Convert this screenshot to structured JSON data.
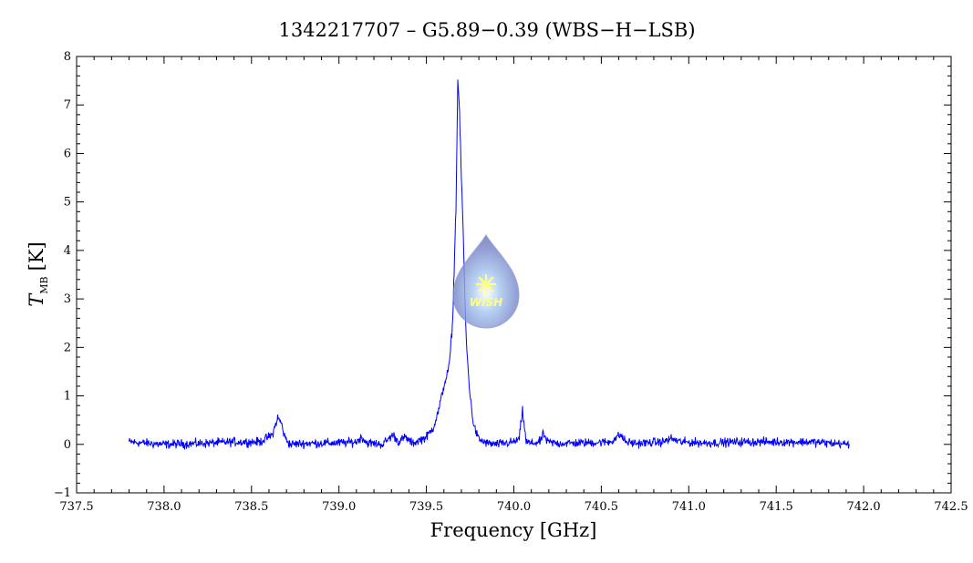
{
  "chart_data": {
    "type": "line",
    "title": "1342217707 – G5.89−0.39 (WBS−H−LSB)",
    "xlabel": "Frequency [GHz]",
    "ylabel_main": "T",
    "ylabel_sub": "MB",
    "ylabel_unit": "[K]",
    "xlim": [
      737.5,
      742.5
    ],
    "ylim": [
      -1,
      8
    ],
    "x_ticks": [
      737.5,
      738.0,
      738.5,
      739.0,
      739.5,
      740.0,
      740.5,
      741.0,
      741.5,
      742.0,
      742.5
    ],
    "x_tick_labels": [
      "737.5",
      "738.0",
      "738.5",
      "739.0",
      "739.5",
      "740.0",
      "740.5",
      "741.0",
      "741.5",
      "742.0",
      "742.5"
    ],
    "y_ticks": [
      -1,
      0,
      1,
      2,
      3,
      4,
      5,
      6,
      7,
      8
    ],
    "y_tick_labels": [
      "−1",
      "0",
      "1",
      "2",
      "3",
      "4",
      "5",
      "6",
      "7",
      "8"
    ],
    "x_minor_step": 0.1,
    "y_minor_step": 0.2,
    "grid": false,
    "line_color": "#0000ff",
    "series": [
      {
        "x": [
          737.8,
          738.0,
          738.2,
          738.4,
          738.55,
          738.62,
          738.65,
          738.67,
          738.69,
          738.72,
          738.8,
          739.0,
          739.1,
          739.13,
          739.16,
          739.25,
          739.31,
          739.34,
          739.38,
          739.42,
          739.5,
          739.54,
          739.57,
          739.6,
          739.63,
          739.65,
          739.67,
          739.68,
          739.69,
          739.7,
          739.71,
          739.72,
          739.73,
          739.75,
          739.77,
          739.8,
          739.85,
          739.9,
          740.0,
          740.03,
          740.05,
          740.07,
          740.1,
          740.15,
          740.17,
          740.19,
          740.25,
          740.4,
          740.55,
          740.61,
          740.64,
          740.7,
          740.85,
          740.9,
          740.95,
          741.1,
          741.3,
          741.5,
          741.7,
          741.92
        ],
        "y": [
          0.05,
          0.0,
          0.02,
          0.05,
          0.05,
          0.2,
          0.55,
          0.45,
          0.15,
          0.0,
          0.02,
          0.03,
          0.05,
          0.15,
          0.03,
          0.0,
          0.2,
          0.05,
          0.15,
          0.02,
          0.15,
          0.35,
          0.7,
          1.2,
          1.6,
          2.5,
          5.0,
          7.6,
          6.8,
          5.5,
          4.5,
          3.0,
          2.0,
          1.0,
          0.4,
          0.1,
          0.02,
          0.0,
          0.05,
          0.1,
          0.7,
          0.05,
          0.02,
          0.05,
          0.22,
          0.05,
          0.02,
          0.03,
          0.05,
          0.2,
          0.05,
          0.02,
          0.05,
          0.12,
          0.05,
          0.03,
          0.05,
          0.05,
          0.05,
          0.0
        ]
      }
    ]
  },
  "watermark": {
    "text": "WISH",
    "colors": {
      "drop": "#7f8fce",
      "star": "#ffff66",
      "text": "#ffff66"
    }
  }
}
